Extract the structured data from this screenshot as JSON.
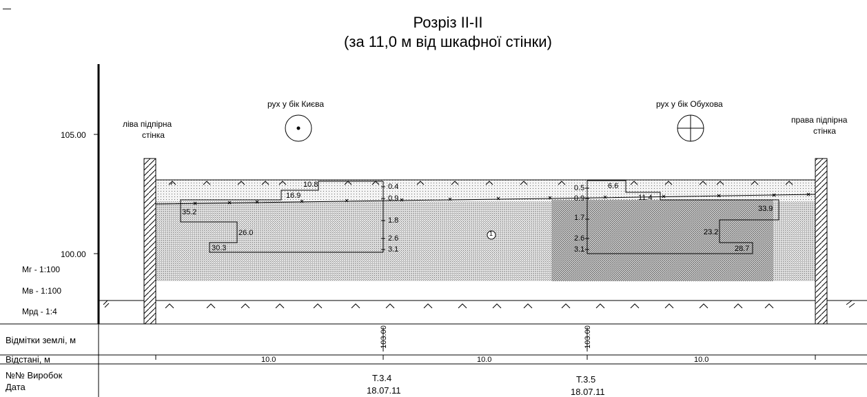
{
  "title": {
    "line1": "Розріз ІІ-ІІ",
    "line2": "(за 11,0 м від шкафної стінки)"
  },
  "labels": {
    "left_wall": [
      "ліва підпірна",
      "стінка"
    ],
    "right_wall": [
      "права підпірна",
      "стінка"
    ],
    "dir_left": "рух у бік Києва",
    "dir_right": "рух у бік Обухова"
  },
  "axis": {
    "y_105": "105.00",
    "y_100": "100.00"
  },
  "scales": {
    "mg": "Мг - 1:100",
    "mv": "Мв - 1:100",
    "mrd": "Мрд - 1:4"
  },
  "left_profile": {
    "depths": [
      "0.4",
      "0.9",
      "1.8",
      "2.6",
      "3.1"
    ],
    "values": [
      "10.8",
      "16.9",
      "35.2",
      "26.0",
      "30.3"
    ]
  },
  "right_profile": {
    "depths": [
      "0.5",
      "0.9",
      "1.7",
      "2.6",
      "3.1"
    ],
    "values": [
      "6.6",
      "11.4",
      "33.9",
      "23.2",
      "28.7"
    ]
  },
  "layer_mark": "1",
  "table": {
    "rows": {
      "ground": "Відмітки землі, м",
      "dist": "Відстані, м",
      "pits1": "№№ Виробок",
      "pits2": "Дата"
    },
    "ground_marks": [
      "103.00",
      "103.00"
    ],
    "distances": [
      "10.0",
      "10.0",
      "10.0"
    ],
    "pits": [
      {
        "id": "Т.3.4",
        "date": "18.07.11"
      },
      {
        "id": "Т.3.5",
        "date": "18.07.11"
      }
    ]
  }
}
